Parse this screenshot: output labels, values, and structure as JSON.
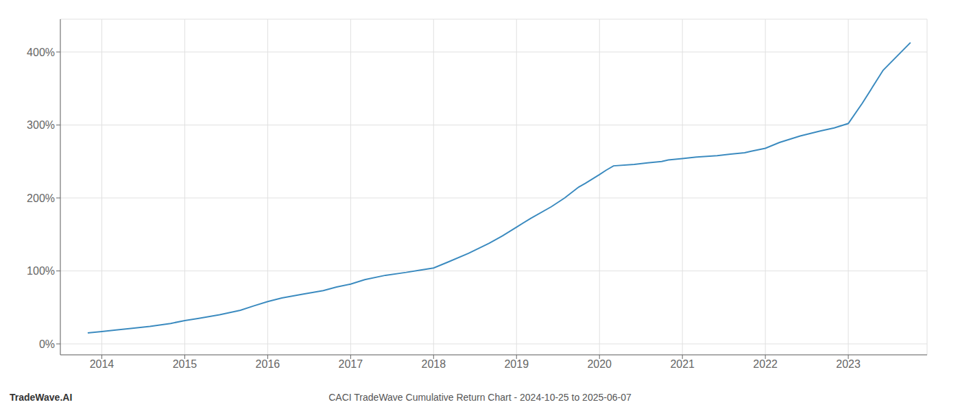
{
  "chart_data": {
    "type": "line",
    "title": "CACI TradeWave Cumulative Return Chart - 2024-10-25 to 2025-06-07",
    "annotations": [
      "TradeWave.AI"
    ],
    "x": [
      2013.83,
      2014.0,
      2014.17,
      2014.33,
      2014.58,
      2014.83,
      2015.0,
      2015.17,
      2015.42,
      2015.67,
      2015.83,
      2016.0,
      2016.17,
      2016.42,
      2016.67,
      2016.83,
      2017.0,
      2017.17,
      2017.42,
      2017.67,
      2017.83,
      2018.0,
      2018.17,
      2018.42,
      2018.67,
      2018.83,
      2019.0,
      2019.17,
      2019.42,
      2019.58,
      2019.75,
      2019.83,
      2020.0,
      2020.08,
      2020.17,
      2020.42,
      2020.58,
      2020.75,
      2020.83,
      2021.0,
      2021.17,
      2021.42,
      2021.58,
      2021.75,
      2021.83,
      2022.0,
      2022.17,
      2022.42,
      2022.67,
      2022.83,
      2023.0,
      2023.17,
      2023.42,
      2023.75
    ],
    "values": [
      15,
      17,
      19,
      21,
      24,
      28,
      32,
      35,
      40,
      46,
      52,
      58,
      63,
      68,
      73,
      78,
      82,
      88,
      94,
      98,
      101,
      104,
      112,
      124,
      138,
      148,
      160,
      172,
      188,
      200,
      215,
      220,
      232,
      238,
      244,
      246,
      248,
      250,
      252,
      254,
      256,
      258,
      260,
      262,
      264,
      268,
      276,
      285,
      292,
      296,
      302,
      330,
      375,
      413
    ],
    "color": "#3a8abf",
    "xlim": [
      2013.5,
      2023.95
    ],
    "xticks": [
      2014,
      2015,
      2016,
      2017,
      2018,
      2019,
      2020,
      2021,
      2022,
      2023
    ],
    "ylim": [
      -15,
      445
    ],
    "yticks": [
      {
        "value": 0,
        "label": "0%"
      },
      {
        "value": 100,
        "label": "100%"
      },
      {
        "value": 200,
        "label": "200%"
      },
      {
        "value": 300,
        "label": "300%"
      },
      {
        "value": 400,
        "label": "400%"
      }
    ],
    "grid": true
  }
}
